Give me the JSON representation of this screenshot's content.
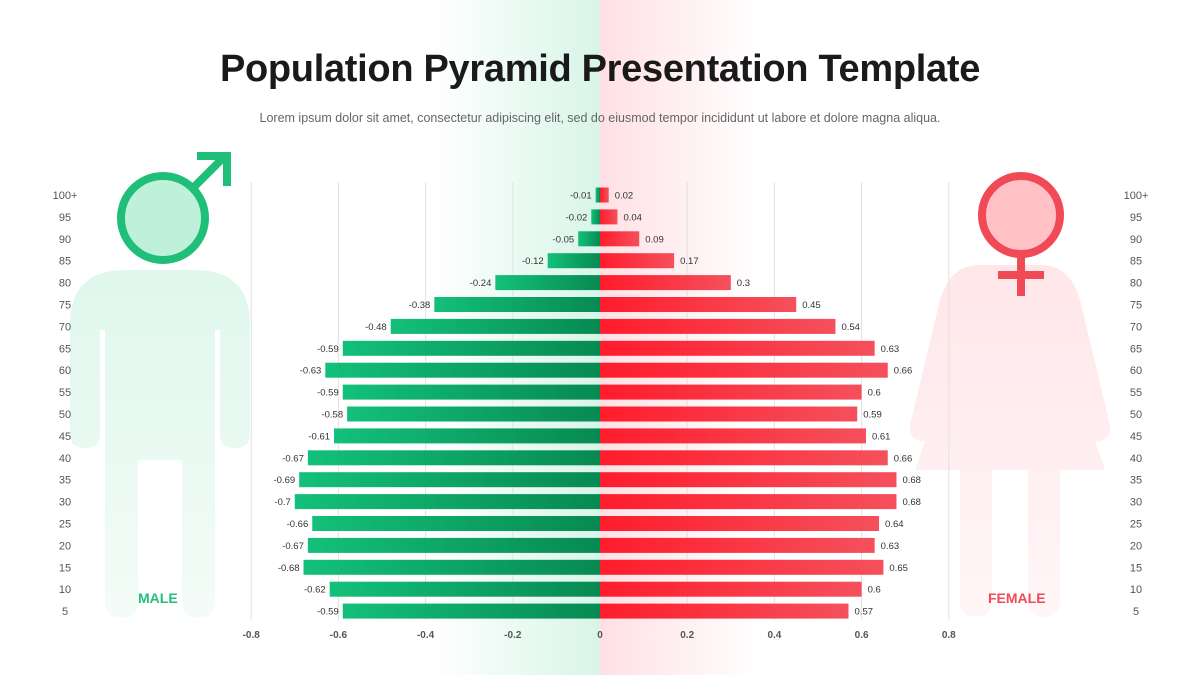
{
  "title": "Population Pyramid Presentation Template",
  "subtitle": "Lorem ipsum dolor sit amet, consectetur adipiscing elit, sed do eiusmod tempor incididunt ut labore et dolore magna aliqua.",
  "male_label": "MALE",
  "female_label": "FEMALE",
  "colors": {
    "male": "#13b872",
    "male_dark": "#0a8a55",
    "female": "#f2414e",
    "female_dark": "#ff1a2a"
  },
  "icons": {
    "male": "male-symbol-icon",
    "female": "female-symbol-icon"
  },
  "chart_data": {
    "type": "bar",
    "orientation": "horizontal",
    "categories": [
      "100+",
      "95",
      "90",
      "85",
      "80",
      "75",
      "70",
      "65",
      "60",
      "55",
      "50",
      "45",
      "40",
      "35",
      "30",
      "25",
      "20",
      "15",
      "10",
      "5"
    ],
    "series": [
      {
        "name": "MALE",
        "values": [
          -0.01,
          -0.02,
          -0.05,
          -0.12,
          -0.24,
          -0.38,
          -0.48,
          -0.59,
          -0.63,
          -0.59,
          -0.58,
          -0.61,
          -0.67,
          -0.69,
          -0.7,
          -0.66,
          -0.67,
          -0.68,
          -0.62,
          -0.59
        ]
      },
      {
        "name": "FEMALE",
        "values": [
          0.02,
          0.04,
          0.09,
          0.17,
          0.3,
          0.45,
          0.54,
          0.63,
          0.66,
          0.6,
          0.59,
          0.61,
          0.66,
          0.68,
          0.68,
          0.64,
          0.63,
          0.65,
          0.6,
          0.57
        ]
      }
    ],
    "xlim": [
      -0.8,
      0.8
    ],
    "xticks": [
      "-0.8",
      "-0.6",
      "-0.4",
      "-0.2",
      "0",
      "0.2",
      "0.4",
      "0.6",
      "0.8"
    ],
    "grid": true
  }
}
